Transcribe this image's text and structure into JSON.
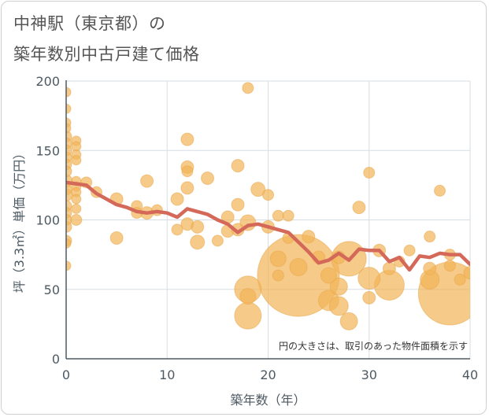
{
  "title_line1": "中神駅（東京都）の",
  "title_line2": "築年数別中古戸建て価格",
  "chart_data": {
    "type": "scatter",
    "xlabel": "築年数（年）",
    "ylabel": "坪（3.3㎡）単価（万円）",
    "xlim": [
      0,
      40
    ],
    "ylim": [
      0,
      200
    ],
    "xticks": [
      "0",
      "10",
      "20",
      "30",
      "40"
    ],
    "yticks": [
      "0",
      "50",
      "100",
      "150",
      "200"
    ],
    "grid": true,
    "annotation": "円の大きさは、取引のあった物件面積を示す",
    "colors": {
      "bubble": "#f2b55a",
      "line": "#d4695a",
      "axis": "#4d5a63",
      "grid": "#d6dde3"
    },
    "series": [
      {
        "kind": "bubbles",
        "points": [
          {
            "x": 0,
            "y": 192,
            "s": 6
          },
          {
            "x": 0,
            "y": 180,
            "s": 6
          },
          {
            "x": 0,
            "y": 170,
            "s": 6
          },
          {
            "x": 0,
            "y": 166,
            "s": 6
          },
          {
            "x": 0,
            "y": 160,
            "s": 7
          },
          {
            "x": 0,
            "y": 155,
            "s": 7
          },
          {
            "x": 0,
            "y": 150,
            "s": 7
          },
          {
            "x": 0,
            "y": 145,
            "s": 7
          },
          {
            "x": 0,
            "y": 140,
            "s": 7
          },
          {
            "x": 0,
            "y": 135,
            "s": 7
          },
          {
            "x": 0,
            "y": 128,
            "s": 8
          },
          {
            "x": 0,
            "y": 122,
            "s": 7
          },
          {
            "x": 0,
            "y": 118,
            "s": 8
          },
          {
            "x": 0,
            "y": 110,
            "s": 7
          },
          {
            "x": 0,
            "y": 105,
            "s": 7
          },
          {
            "x": 0,
            "y": 100,
            "s": 7
          },
          {
            "x": 0,
            "y": 95,
            "s": 7
          },
          {
            "x": 0,
            "y": 85,
            "s": 7
          },
          {
            "x": 0,
            "y": 83,
            "s": 6
          },
          {
            "x": 0,
            "y": 67,
            "s": 6
          },
          {
            "x": 1,
            "y": 157,
            "s": 6
          },
          {
            "x": 1,
            "y": 153,
            "s": 6
          },
          {
            "x": 1,
            "y": 147,
            "s": 6
          },
          {
            "x": 1,
            "y": 143,
            "s": 6
          },
          {
            "x": 1,
            "y": 128,
            "s": 6
          },
          {
            "x": 1,
            "y": 124,
            "s": 6
          },
          {
            "x": 1,
            "y": 120,
            "s": 6
          },
          {
            "x": 1,
            "y": 115,
            "s": 6
          },
          {
            "x": 1,
            "y": 108,
            "s": 6
          },
          {
            "x": 1,
            "y": 100,
            "s": 7
          },
          {
            "x": 2,
            "y": 127,
            "s": 7
          },
          {
            "x": 3,
            "y": 120,
            "s": 7
          },
          {
            "x": 5,
            "y": 115,
            "s": 8
          },
          {
            "x": 5,
            "y": 87,
            "s": 8
          },
          {
            "x": 7,
            "y": 110,
            "s": 7
          },
          {
            "x": 7,
            "y": 105,
            "s": 7
          },
          {
            "x": 8,
            "y": 128,
            "s": 8
          },
          {
            "x": 8,
            "y": 105,
            "s": 8
          },
          {
            "x": 9,
            "y": 107,
            "s": 7
          },
          {
            "x": 11,
            "y": 115,
            "s": 8
          },
          {
            "x": 11,
            "y": 93,
            "s": 7
          },
          {
            "x": 12,
            "y": 158,
            "s": 8
          },
          {
            "x": 12,
            "y": 138,
            "s": 8
          },
          {
            "x": 12,
            "y": 135,
            "s": 7
          },
          {
            "x": 12,
            "y": 123,
            "s": 8
          },
          {
            "x": 12,
            "y": 97,
            "s": 8
          },
          {
            "x": 13,
            "y": 95,
            "s": 8
          },
          {
            "x": 13,
            "y": 84,
            "s": 9
          },
          {
            "x": 14,
            "y": 130,
            "s": 8
          },
          {
            "x": 15,
            "y": 85,
            "s": 7
          },
          {
            "x": 16,
            "y": 102,
            "s": 8
          },
          {
            "x": 16,
            "y": 92,
            "s": 8
          },
          {
            "x": 17,
            "y": 139,
            "s": 8
          },
          {
            "x": 17,
            "y": 111,
            "s": 8
          },
          {
            "x": 17,
            "y": 93,
            "s": 8
          },
          {
            "x": 18,
            "y": 195,
            "s": 7
          },
          {
            "x": 18,
            "y": 98,
            "s": 10
          },
          {
            "x": 18,
            "y": 50,
            "s": 17
          },
          {
            "x": 18,
            "y": 45,
            "s": 10
          },
          {
            "x": 18,
            "y": 31,
            "s": 17
          },
          {
            "x": 19,
            "y": 122,
            "s": 9
          },
          {
            "x": 20,
            "y": 118,
            "s": 7
          },
          {
            "x": 20,
            "y": 95,
            "s": 8
          },
          {
            "x": 21,
            "y": 103,
            "s": 7
          },
          {
            "x": 21,
            "y": 72,
            "s": 10
          },
          {
            "x": 21,
            "y": 60,
            "s": 7
          },
          {
            "x": 22,
            "y": 103,
            "s": 7
          },
          {
            "x": 22,
            "y": 87,
            "s": 7
          },
          {
            "x": 23,
            "y": 60,
            "s": 52
          },
          {
            "x": 23,
            "y": 66,
            "s": 11
          },
          {
            "x": 24,
            "y": 88,
            "s": 8
          },
          {
            "x": 25,
            "y": 73,
            "s": 8
          },
          {
            "x": 26,
            "y": 60,
            "s": 10
          },
          {
            "x": 26,
            "y": 42,
            "s": 13
          },
          {
            "x": 27,
            "y": 73,
            "s": 8
          },
          {
            "x": 27,
            "y": 52,
            "s": 11
          },
          {
            "x": 27,
            "y": 38,
            "s": 12
          },
          {
            "x": 28,
            "y": 72,
            "s": 22
          },
          {
            "x": 28,
            "y": 27,
            "s": 11
          },
          {
            "x": 29,
            "y": 109,
            "s": 8
          },
          {
            "x": 30,
            "y": 134,
            "s": 7
          },
          {
            "x": 30,
            "y": 58,
            "s": 14
          },
          {
            "x": 30,
            "y": 44,
            "s": 8
          },
          {
            "x": 31,
            "y": 78,
            "s": 8
          },
          {
            "x": 32,
            "y": 65,
            "s": 8
          },
          {
            "x": 32,
            "y": 53,
            "s": 19
          },
          {
            "x": 33,
            "y": 70,
            "s": 7
          },
          {
            "x": 34,
            "y": 78,
            "s": 7
          },
          {
            "x": 36,
            "y": 88,
            "s": 7
          },
          {
            "x": 36,
            "y": 65,
            "s": 8
          },
          {
            "x": 36,
            "y": 57,
            "s": 12
          },
          {
            "x": 37,
            "y": 121,
            "s": 7
          },
          {
            "x": 38,
            "y": 47,
            "s": 40
          },
          {
            "x": 38,
            "y": 75,
            "s": 7
          },
          {
            "x": 38,
            "y": 67,
            "s": 7
          },
          {
            "x": 39,
            "y": 57,
            "s": 7
          },
          {
            "x": 40,
            "y": 62,
            "s": 8
          }
        ]
      },
      {
        "kind": "line",
        "x": [
          0,
          1,
          2,
          3,
          4,
          5,
          6,
          7,
          8,
          9,
          10,
          11,
          12,
          13,
          14,
          15,
          16,
          17,
          18,
          19,
          20,
          21,
          22,
          23,
          24,
          25,
          26,
          27,
          28,
          29,
          30,
          31,
          32,
          33,
          34,
          35,
          36,
          37,
          38,
          39,
          40
        ],
        "y": [
          127,
          126,
          125,
          119,
          115,
          111,
          109,
          106,
          105,
          106,
          105,
          102,
          108,
          106,
          104,
          100,
          97,
          91,
          96,
          97,
          95,
          93,
          91,
          84,
          77,
          69,
          71,
          76,
          71,
          79,
          78,
          78,
          70,
          73,
          64,
          74,
          73,
          76,
          75,
          75,
          68
        ]
      }
    ]
  }
}
